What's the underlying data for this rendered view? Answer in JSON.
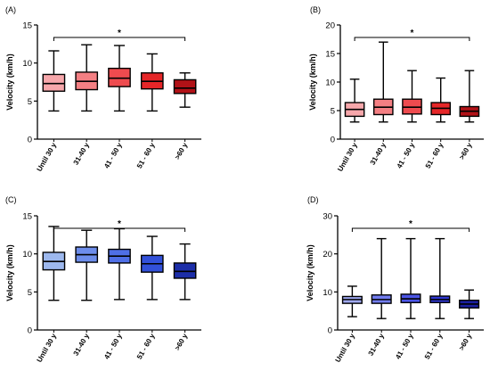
{
  "chart_data": [
    {
      "panel": "(A)",
      "type": "boxplot",
      "ylabel": "Velocity (km/h)",
      "ylim": [
        0,
        15
      ],
      "yticks": [
        0,
        5,
        10,
        15
      ],
      "categories": [
        "Until 30 y",
        "31-40 y",
        "41 - 50 y",
        "51 - 60 y",
        ">60 y"
      ],
      "boxes": [
        {
          "min": 3.7,
          "q1": 6.3,
          "median": 7.3,
          "q3": 8.5,
          "max": 11.6,
          "color": "#f7a7ab"
        },
        {
          "min": 3.7,
          "q1": 6.5,
          "median": 7.6,
          "q3": 8.8,
          "max": 12.4,
          "color": "#f47f83"
        },
        {
          "min": 3.7,
          "q1": 6.9,
          "median": 8.0,
          "q3": 9.3,
          "max": 12.3,
          "color": "#ee4b4f"
        },
        {
          "min": 3.7,
          "q1": 6.6,
          "median": 7.6,
          "q3": 8.7,
          "max": 11.2,
          "color": "#e52628"
        },
        {
          "min": 4.2,
          "q1": 6.0,
          "median": 6.7,
          "q3": 7.8,
          "max": 8.7,
          "color": "#b11217"
        }
      ],
      "significance": "*"
    },
    {
      "panel": "(B)",
      "type": "boxplot",
      "ylabel": "Velocity (km/h)",
      "ylim": [
        0,
        20
      ],
      "yticks": [
        0,
        5,
        10,
        15,
        20
      ],
      "categories": [
        "Until 30 y",
        "31-40 y",
        "41 - 50 y",
        "51 - 60 y",
        ">60 y"
      ],
      "boxes": [
        {
          "min": 3.0,
          "q1": 4.0,
          "median": 5.2,
          "q3": 6.4,
          "max": 10.5,
          "color": "#f7a7ab"
        },
        {
          "min": 3.0,
          "q1": 4.3,
          "median": 5.6,
          "q3": 7.0,
          "max": 17.0,
          "color": "#f47f83"
        },
        {
          "min": 3.0,
          "q1": 4.4,
          "median": 5.6,
          "q3": 7.0,
          "max": 12.0,
          "color": "#ee4b4f"
        },
        {
          "min": 3.0,
          "q1": 4.3,
          "median": 5.4,
          "q3": 6.4,
          "max": 10.7,
          "color": "#e52628"
        },
        {
          "min": 3.0,
          "q1": 4.0,
          "median": 4.9,
          "q3": 5.7,
          "max": 12.0,
          "color": "#b11217"
        }
      ],
      "significance": "*"
    },
    {
      "panel": "(C)",
      "type": "boxplot",
      "ylabel": "Velocity (km/h)",
      "ylim": [
        0,
        15
      ],
      "yticks": [
        0,
        5,
        10,
        15
      ],
      "categories": [
        "Until 30 y",
        "31-40 y",
        "41 - 50 y",
        "51 - 60 y",
        ">60 y"
      ],
      "boxes": [
        {
          "min": 3.9,
          "q1": 7.9,
          "median": 9.0,
          "q3": 10.2,
          "max": 13.6,
          "color": "#9db8ee"
        },
        {
          "min": 3.9,
          "q1": 8.9,
          "median": 9.9,
          "q3": 10.9,
          "max": 13.1,
          "color": "#6d8deb"
        },
        {
          "min": 4.0,
          "q1": 8.8,
          "median": 9.7,
          "q3": 10.6,
          "max": 13.3,
          "color": "#4f6fe6"
        },
        {
          "min": 4.0,
          "q1": 7.6,
          "median": 8.7,
          "q3": 9.8,
          "max": 12.3,
          "color": "#3251d9"
        },
        {
          "min": 4.0,
          "q1": 6.8,
          "median": 7.7,
          "q3": 8.8,
          "max": 11.3,
          "color": "#1c2ea8"
        }
      ],
      "significance": "*"
    },
    {
      "panel": "(D)",
      "type": "boxplot",
      "ylabel": "Velocity (km/h)",
      "ylim": [
        0,
        30
      ],
      "yticks": [
        0,
        10,
        20,
        30
      ],
      "categories": [
        "Until 30 y",
        "31-40 y",
        "41 - 50 y",
        "51 - 60 y",
        ">60 y"
      ],
      "boxes": [
        {
          "min": 3.5,
          "q1": 7.0,
          "median": 8.0,
          "q3": 8.8,
          "max": 11.5,
          "color": "#9fa8f2"
        },
        {
          "min": 3.0,
          "q1": 7.0,
          "median": 8.0,
          "q3": 9.2,
          "max": 24.0,
          "color": "#727df0"
        },
        {
          "min": 3.0,
          "q1": 7.2,
          "median": 8.2,
          "q3": 9.4,
          "max": 24.0,
          "color": "#4b55e6"
        },
        {
          "min": 3.0,
          "q1": 7.2,
          "median": 8.0,
          "q3": 8.9,
          "max": 24.0,
          "color": "#3038d2"
        },
        {
          "min": 3.0,
          "q1": 5.8,
          "median": 6.8,
          "q3": 7.8,
          "max": 10.5,
          "color": "#1a1f9e"
        }
      ],
      "significance": "*"
    }
  ]
}
